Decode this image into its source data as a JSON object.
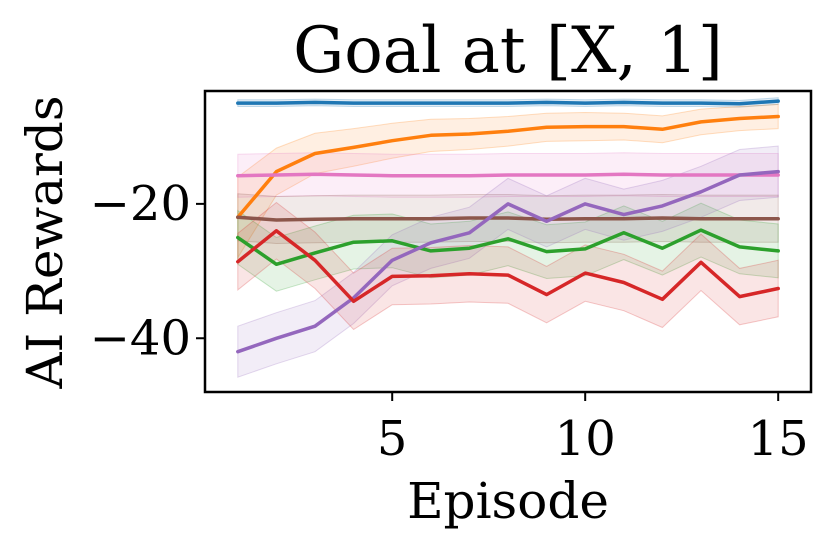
{
  "chart_data": {
    "type": "line",
    "title": "Goal at [X, 1]",
    "xlabel": "Episode",
    "ylabel": "AI Rewards",
    "xlim": [
      0.15,
      15.85
    ],
    "ylim": [
      -48,
      -3.2
    ],
    "xticks": [
      {
        "value": 5,
        "label": "5"
      },
      {
        "value": 10,
        "label": "10"
      },
      {
        "value": 15,
        "label": "15"
      }
    ],
    "yticks": [
      {
        "value": -20,
        "label": "−20"
      },
      {
        "value": -40,
        "label": "−40"
      }
    ],
    "grid": false,
    "legend": "none",
    "x": [
      1,
      2,
      3,
      4,
      5,
      6,
      7,
      8,
      9,
      10,
      11,
      12,
      13,
      14,
      15
    ],
    "series": [
      {
        "color": "#1f77b4",
        "values": [
          -5.0,
          -5.0,
          -4.9,
          -5.0,
          -5.0,
          -5.0,
          -5.0,
          -5.0,
          -4.9,
          -5.0,
          -4.9,
          -5.0,
          -5.0,
          -5.1,
          -4.7
        ],
        "band": 0.5
      },
      {
        "color": "#ff7f0e",
        "values": [
          -22.0,
          -15.2,
          -12.5,
          -11.6,
          -10.6,
          -9.8,
          -9.6,
          -9.2,
          -8.6,
          -8.5,
          -8.5,
          -8.9,
          -7.8,
          -7.3,
          -7.0
        ],
        "band": [
          6.0,
          3.5,
          3.0,
          2.8,
          2.6,
          2.4,
          2.3,
          2.2,
          2.1,
          2.1,
          2.0,
          2.0,
          1.9,
          1.8,
          1.8
        ]
      },
      {
        "color": "#e377c2",
        "values": [
          -15.8,
          -15.7,
          -15.6,
          -15.7,
          -15.8,
          -15.8,
          -15.8,
          -15.7,
          -15.7,
          -15.7,
          -15.6,
          -15.7,
          -15.7,
          -15.7,
          -15.7
        ],
        "band": 3.2
      },
      {
        "color": "#8c564b",
        "values": [
          -22.0,
          -22.4,
          -22.3,
          -22.2,
          -22.2,
          -22.2,
          -22.1,
          -22.1,
          -22.3,
          -22.2,
          -22.2,
          -22.1,
          -22.2,
          -22.2,
          -22.2
        ],
        "band": 3.5
      },
      {
        "color": "#2ca02c",
        "values": [
          -25.0,
          -29.0,
          -27.3,
          -25.7,
          -25.5,
          -27.0,
          -26.6,
          -25.2,
          -27.1,
          -26.7,
          -24.3,
          -26.6,
          -23.9,
          -26.4,
          -27.0
        ],
        "band": 4.0
      },
      {
        "color": "#9467bd",
        "values": [
          -42.0,
          -40.0,
          -38.2,
          -34.0,
          -28.4,
          -25.8,
          -24.3,
          -20.0,
          -22.6,
          -20.0,
          -21.6,
          -20.3,
          -18.2,
          -15.7,
          -15.2
        ],
        "band": 3.8
      },
      {
        "color": "#d62728",
        "values": [
          -28.6,
          -24.0,
          -28.4,
          -34.5,
          -30.8,
          -30.7,
          -30.4,
          -30.6,
          -33.5,
          -30.3,
          -31.7,
          -34.2,
          -28.7,
          -33.8,
          -32.6
        ],
        "band": 4.2
      }
    ]
  }
}
